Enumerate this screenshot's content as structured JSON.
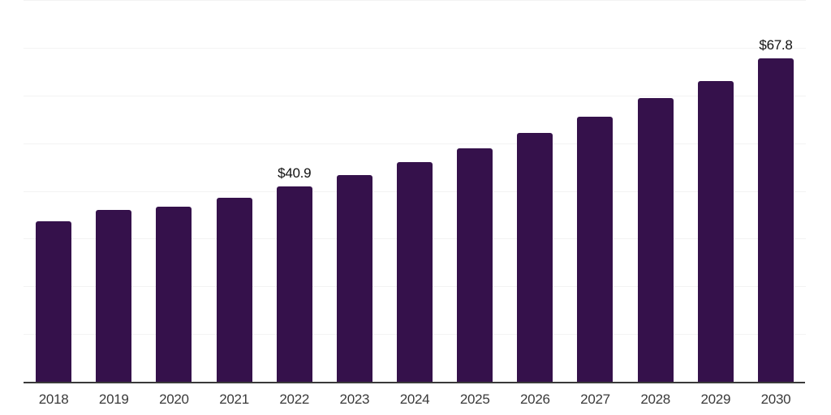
{
  "chart_data": {
    "type": "bar",
    "categories": [
      "2018",
      "2019",
      "2020",
      "2021",
      "2022",
      "2023",
      "2024",
      "2025",
      "2026",
      "2027",
      "2028",
      "2029",
      "2030"
    ],
    "values": [
      33.7,
      36.0,
      36.7,
      38.6,
      40.9,
      43.3,
      46.1,
      48.9,
      52.2,
      55.6,
      59.4,
      63.1,
      67.8
    ],
    "data_labels": [
      "",
      "",
      "",
      "",
      "$40.9",
      "",
      "",
      "",
      "",
      "",
      "",
      "",
      "$67.8"
    ],
    "title": "",
    "xlabel": "",
    "ylabel": "",
    "ylim": [
      0,
      80
    ],
    "gridline_step": 10,
    "grid": true,
    "legend": false,
    "colors": {
      "bar": "#35114b",
      "gridline": "#f3f3f3",
      "axis_line": "#3a3a3a",
      "tick_label": "#3a3a3a",
      "data_label": "#111111",
      "background": "#ffffff"
    }
  }
}
